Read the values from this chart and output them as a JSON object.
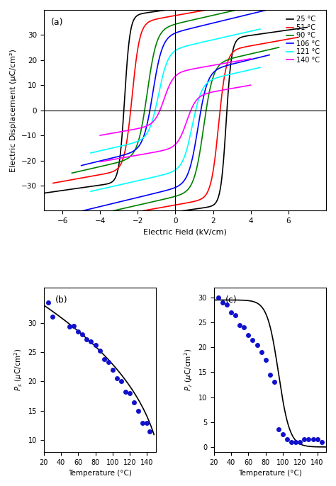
{
  "loops": [
    {
      "color": "black",
      "label": "25 °C",
      "Ec": 2.7,
      "Emax": 7.0,
      "Ps": 33,
      "slope": 1.5,
      "tilt": 1.5
    },
    {
      "color": "red",
      "label": "51 °C",
      "Ec": 2.3,
      "Emax": 6.5,
      "Ps": 29,
      "slope": 2.0,
      "tilt": 2.5
    },
    {
      "color": "green",
      "label": "90 °C",
      "Ec": 1.5,
      "Emax": 5.5,
      "Ps": 25,
      "slope": 2.5,
      "tilt": 3.5
    },
    {
      "color": "blue",
      "label": "106 °C",
      "Ec": 1.2,
      "Emax": 5.0,
      "Ps": 22,
      "slope": 3.0,
      "tilt": 4.0
    },
    {
      "color": "cyan",
      "label": "121 °C",
      "Ec": 0.9,
      "Emax": 4.5,
      "Ps": 17,
      "slope": 3.5,
      "tilt": 4.5
    },
    {
      "color": "magenta",
      "label": "140 °C",
      "Ec": 0.6,
      "Emax": 4.0,
      "Ps": 10,
      "slope": 4.0,
      "tilt": 5.0
    }
  ],
  "panel_a": {
    "xlim": [
      -7,
      8
    ],
    "ylim": [
      -40,
      40
    ],
    "xlabel": "Electric Field (kV/cm)",
    "ylabel": "Electric Displacement (μC/cm²)",
    "xticks": [
      -6,
      -4,
      -2,
      0,
      2,
      4,
      6
    ],
    "yticks": [
      -30,
      -20,
      -10,
      0,
      10,
      20,
      30
    ]
  },
  "panel_b": {
    "xlabel": "Temperature (°C)",
    "xlim": [
      20,
      150
    ],
    "ylim": [
      8,
      36
    ],
    "xticks": [
      20,
      40,
      60,
      80,
      100,
      120,
      140
    ],
    "yticks": [
      10,
      15,
      20,
      25,
      30
    ],
    "data_T": [
      25,
      30,
      50,
      55,
      60,
      65,
      70,
      75,
      80,
      85,
      90,
      95,
      100,
      105,
      110,
      115,
      120,
      125,
      130,
      135,
      140,
      143
    ],
    "data_P": [
      33.5,
      31.0,
      29.3,
      29.5,
      28.5,
      28.0,
      27.2,
      26.8,
      26.2,
      25.2,
      23.8,
      23.3,
      22.0,
      20.5,
      20.0,
      18.3,
      18.0,
      16.5,
      15.0,
      13.0,
      13.0,
      11.5
    ]
  },
  "panel_c": {
    "xlabel": "Temperature (°C)",
    "xlim": [
      20,
      150
    ],
    "ylim": [
      -1,
      32
    ],
    "xticks": [
      20,
      40,
      60,
      80,
      100,
      120,
      140
    ],
    "yticks": [
      0,
      5,
      10,
      15,
      20,
      25,
      30
    ],
    "data_T": [
      25,
      30,
      35,
      40,
      45,
      50,
      55,
      60,
      65,
      70,
      75,
      80,
      85,
      90,
      95,
      100,
      105,
      110,
      115,
      120,
      125,
      130,
      135,
      140,
      145
    ],
    "data_P": [
      30.0,
      29.0,
      28.5,
      27.0,
      26.5,
      24.5,
      24.0,
      22.5,
      21.5,
      20.5,
      19.0,
      17.5,
      14.5,
      13.0,
      3.5,
      2.5,
      1.5,
      1.0,
      1.0,
      1.0,
      1.5,
      1.5,
      1.5,
      1.5,
      1.0
    ]
  },
  "dot_color": "#1111cc",
  "line_color": "black"
}
